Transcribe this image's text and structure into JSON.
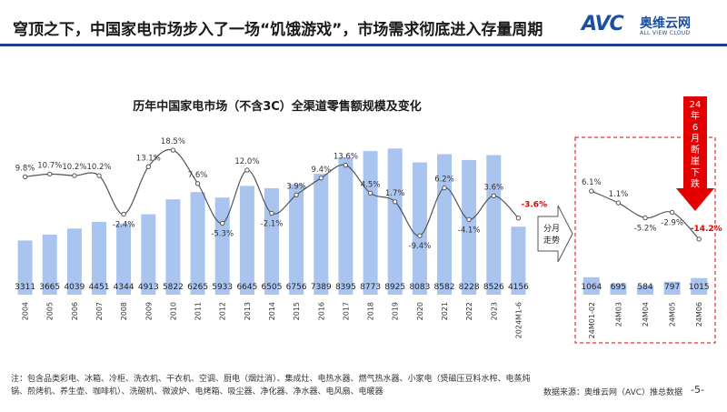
{
  "slide": {
    "title": "穹顶之下，中国家电市场步入了一场“饥饿游戏”，市场需求彻底进入存量周期",
    "logo_text": "AVC",
    "logo_cn": "奥维云网",
    "logo_en": "ALL VIEW CLOUD",
    "footnote": "注：包含品类彩电、冰箱、冷柜、洗衣机、干衣机、空调、厨电（烟灶消）、集成灶、电热水器、燃气热水器、小家电（煲磁压豆料水榨、电蒸炖锅、煎烤机、养生壶、咖啡机）、洗碗机、微波炉、电烤箱、吸尘器、净化器、净水器、电风扇、电暖器",
    "source": "数据来源：奥维云网（AVC）推总数据",
    "page_number": "-5-"
  },
  "colors": {
    "bar": "#a9c4ee",
    "line": "#555555",
    "negative_label": "#e30000",
    "title_rule": "#1f3a93",
    "dashed_box": "#e30000"
  },
  "chart_data": [
    {
      "type": "bar",
      "title": "历年中国家电市场（不含3C）全渠道零售额规模及变化",
      "categories": [
        "2004",
        "2005",
        "2006",
        "2007",
        "2008",
        "2009",
        "2010",
        "2011",
        "2012",
        "2013",
        "2014",
        "2015",
        "2016",
        "2017",
        "2018",
        "2019",
        "2020",
        "2021",
        "2022",
        "2023",
        "2024M1-6"
      ],
      "values": [
        3311,
        3665,
        4039,
        4451,
        4344,
        4913,
        5822,
        6265,
        5933,
        6645,
        6505,
        6756,
        7389,
        8395,
        8773,
        8925,
        8083,
        8582,
        8228,
        8526,
        4156
      ],
      "value_labels": [
        "3311",
        "3665",
        "4039",
        "4451",
        "4344",
        "4913",
        "5822",
        "6265",
        "5933",
        "6645",
        "6505",
        "6756",
        "7389",
        "8395",
        "8773",
        "8925",
        "8083",
        "8582",
        "8228",
        "8526",
        "4156"
      ],
      "growth": [
        9.8,
        10.7,
        10.2,
        10.2,
        -2.4,
        13.1,
        18.5,
        7.6,
        -5.3,
        12.0,
        -2.1,
        3.9,
        9.4,
        13.6,
        4.5,
        1.7,
        -9.4,
        6.2,
        -4.1,
        3.6,
        -3.6
      ],
      "growth_labels": [
        "9.8%",
        "10.7%",
        "10.2%",
        "10.2%",
        "-2.4%",
        "13.1%",
        "18.5%",
        "7.6%",
        "-5.3%",
        "12.0%",
        "-2.1%",
        "3.9%",
        "9.4%",
        "13.6%",
        "4.5%",
        "1.7%",
        "-9.4%",
        "6.2%",
        "-4.1%",
        "3.6%",
        "-3.6%"
      ],
      "ylim": [
        0,
        9000
      ],
      "growth_range": [
        -12,
        20
      ]
    },
    {
      "type": "bar",
      "categories": [
        "24M01-02",
        "24M03",
        "24M04",
        "24M05",
        "24M06"
      ],
      "values": [
        1064,
        695,
        584,
        797,
        1015
      ],
      "value_labels": [
        "1064",
        "695",
        "584",
        "797",
        "1015"
      ],
      "growth": [
        6.1,
        1.1,
        -5.2,
        -2.9,
        -14.2
      ],
      "growth_labels": [
        "6.1%",
        "1.1%",
        "-5.2%",
        "-2.9%",
        "-14.2%"
      ],
      "ylim": [
        0,
        9000
      ],
      "growth_range": [
        -20,
        10
      ]
    }
  ],
  "annotations": {
    "arrow_label": "分月走势",
    "callout": "24年6月断崖下跌"
  }
}
